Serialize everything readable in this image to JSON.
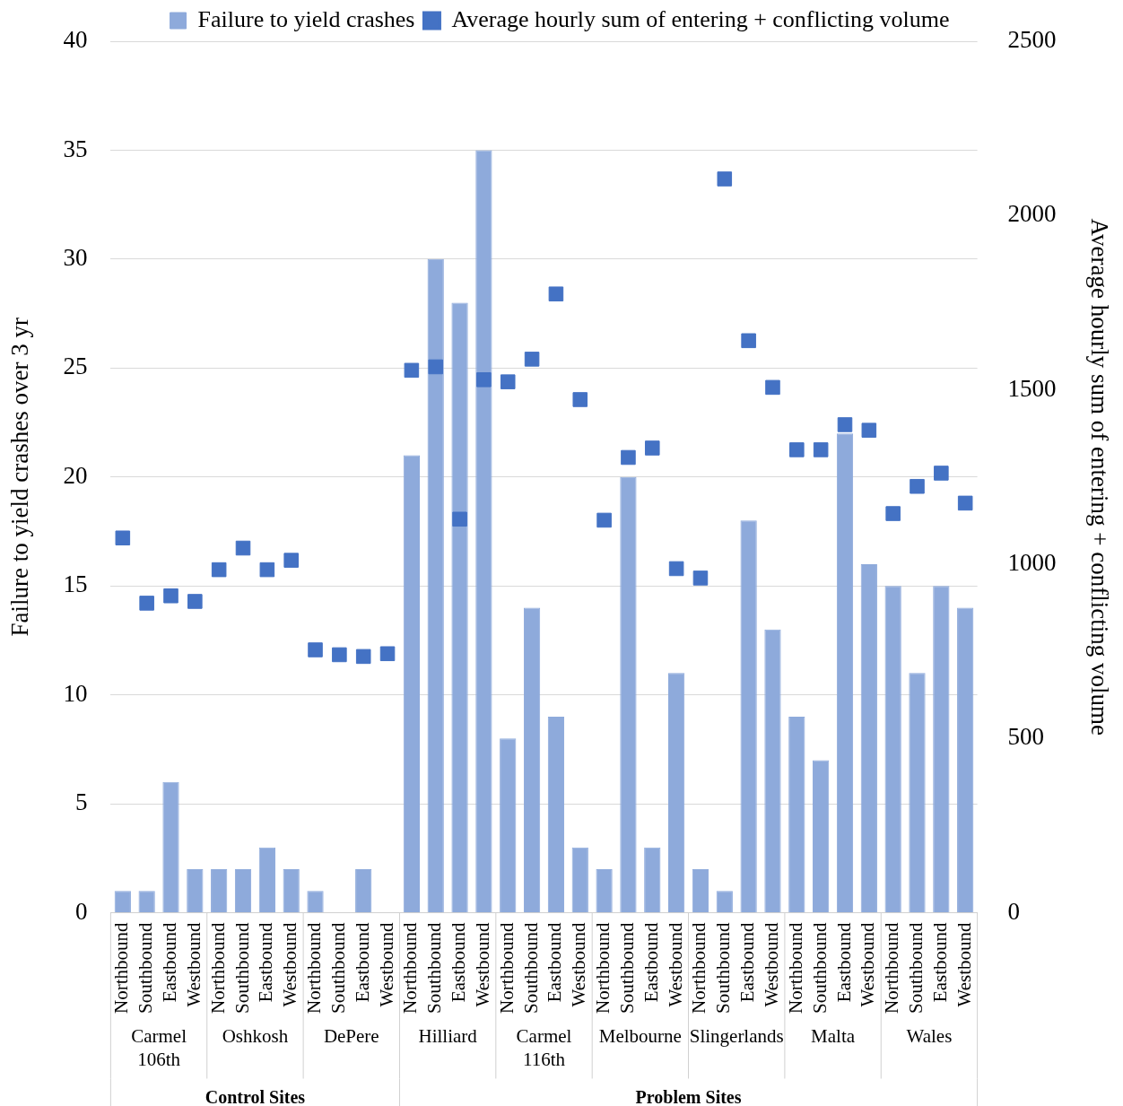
{
  "chart_data": {
    "type": "bar",
    "ylabel": "Failure to yield crashes over 3 yr",
    "y2label": "Average hourly sum of entering + conflicting volume",
    "categories": [
      "Northbound",
      "Southbound",
      "Eastbound",
      "Westbound",
      "Northbound",
      "Southbound",
      "Eastbound",
      "Westbound",
      "Northbound",
      "Southbound",
      "Eastbound",
      "Westbound",
      "Northbound",
      "Southbound",
      "Eastbound",
      "Westbound",
      "Northbound",
      "Southbound",
      "Eastbound",
      "Westbound",
      "Northbound",
      "Southbound",
      "Eastbound",
      "Westbound",
      "Northbound",
      "Southbound",
      "Eastbound",
      "Westbound",
      "Northbound",
      "Southbound",
      "Eastbound",
      "Westbound",
      "Northbound",
      "Southbound",
      "Eastbound",
      "Westbound"
    ],
    "series": [
      {
        "name": "Failure to yield crashes",
        "color": "#8eaadb",
        "values": [
          1,
          1,
          6,
          2,
          2,
          2,
          3,
          2,
          1,
          0,
          2,
          0,
          21,
          30,
          28,
          35,
          8,
          14,
          9,
          3,
          2,
          20,
          3,
          11,
          2,
          1,
          18,
          13,
          9,
          7,
          22,
          16,
          15,
          11,
          15,
          14
        ]
      },
      {
        "name": "Average hourly sum of entering + conflicting volume",
        "type": "scatter",
        "axis": "y2",
        "marker": "square",
        "color": "#4472c4",
        "values": [
          1075,
          888,
          909,
          893,
          984,
          1046,
          984,
          1011,
          754,
          740,
          735,
          743,
          1556,
          1566,
          1129,
          1529,
          1523,
          1588,
          1775,
          1472,
          1126,
          1306,
          1333,
          987,
          960,
          2105,
          1641,
          1507,
          1328,
          1328,
          1400,
          1384,
          1145,
          1223,
          1261,
          1175
        ]
      }
    ],
    "ylim": [
      0,
      40
    ],
    "yticks": [
      0,
      5,
      10,
      15,
      20,
      25,
      30,
      35,
      40
    ],
    "y2lim": [
      0,
      2500
    ],
    "y2ticks": [
      0,
      500,
      1000,
      1500,
      2000,
      2500
    ],
    "grid": "y",
    "legend": "top",
    "annotations": [
      "Carmel 106th",
      "Oshkosh",
      "DePere",
      "Hilliard",
      "Carmel 116th",
      "Melbourne",
      "Slingerlands",
      "Malta",
      "Wales",
      "Control Sites",
      "Problem Sites"
    ]
  }
}
